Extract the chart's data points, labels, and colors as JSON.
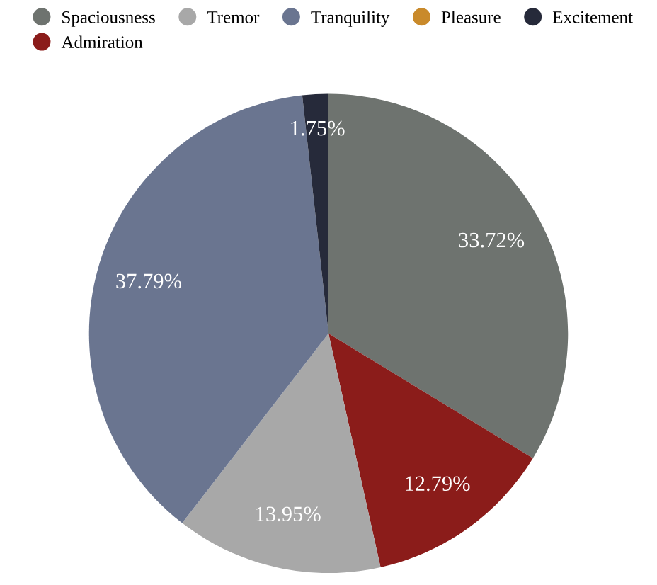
{
  "chart_data": {
    "type": "pie",
    "categories": [
      "Spaciousness",
      "Admiration",
      "Tremor",
      "Tranquility",
      "Pleasure",
      "Excitement"
    ],
    "values": [
      33.72,
      12.79,
      13.95,
      37.79,
      0,
      1.75
    ],
    "colors": [
      "#6e736f",
      "#8b1c1a",
      "#a8a8a8",
      "#6a7590",
      "#c98a2b",
      "#262a3a"
    ],
    "value_labels": [
      "33.72%",
      "12.79%",
      "13.95%",
      "37.79%",
      null,
      "1.75%"
    ],
    "legend": "top"
  }
}
